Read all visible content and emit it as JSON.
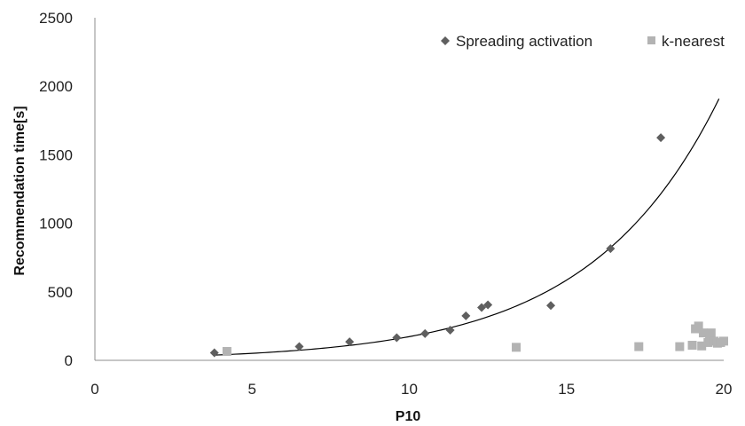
{
  "chart_data": {
    "type": "scatter",
    "xlabel": "P10",
    "ylabel": "Recommendation time[s]",
    "xlim": [
      0,
      20
    ],
    "ylim": [
      0,
      2500
    ],
    "x_ticks": [
      "0",
      "5",
      "10",
      "15",
      "20"
    ],
    "y_ticks": [
      "0",
      "500",
      "1000",
      "1500",
      "2000",
      "2500"
    ],
    "grid": false,
    "legend_position": "top-right",
    "series": [
      {
        "name": "Spreading activation",
        "marker": "diamond",
        "color": "#5f5f5f",
        "points": [
          {
            "x": 3.8,
            "y": 55
          },
          {
            "x": 6.5,
            "y": 100
          },
          {
            "x": 8.1,
            "y": 135
          },
          {
            "x": 9.6,
            "y": 165
          },
          {
            "x": 10.5,
            "y": 195
          },
          {
            "x": 11.3,
            "y": 220
          },
          {
            "x": 11.8,
            "y": 325
          },
          {
            "x": 12.3,
            "y": 385
          },
          {
            "x": 12.5,
            "y": 405
          },
          {
            "x": 14.5,
            "y": 400
          },
          {
            "x": 16.4,
            "y": 815
          },
          {
            "x": 18.0,
            "y": 1625
          }
        ]
      },
      {
        "name": "k-nearest",
        "marker": "square",
        "color": "#b3b3b3",
        "points": [
          {
            "x": 4.2,
            "y": 65
          },
          {
            "x": 13.4,
            "y": 95
          },
          {
            "x": 17.3,
            "y": 100
          },
          {
            "x": 18.6,
            "y": 100
          },
          {
            "x": 19.0,
            "y": 110
          },
          {
            "x": 19.1,
            "y": 230
          },
          {
            "x": 19.2,
            "y": 250
          },
          {
            "x": 19.3,
            "y": 105
          },
          {
            "x": 19.35,
            "y": 200
          },
          {
            "x": 19.5,
            "y": 130
          },
          {
            "x": 19.55,
            "y": 150
          },
          {
            "x": 19.6,
            "y": 200
          },
          {
            "x": 19.7,
            "y": 140
          },
          {
            "x": 19.8,
            "y": 125
          },
          {
            "x": 19.9,
            "y": 130
          },
          {
            "x": 20.0,
            "y": 140
          }
        ]
      }
    ],
    "trendline": {
      "type": "exponential",
      "series": "Spreading activation",
      "x_start": 3.8,
      "x_end": 19.85,
      "a": 15.1,
      "b": 0.2438,
      "color": "#000000"
    }
  }
}
